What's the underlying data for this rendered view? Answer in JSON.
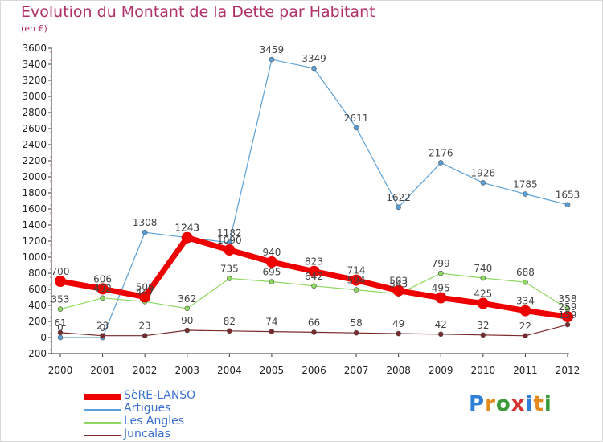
{
  "title": "Evolution du Montant de la Dette par Habitant",
  "subtitle": "(en €)",
  "logo": {
    "text": "Proxiti",
    "colors": [
      "#2f7fd8",
      "#e48a1c",
      "#3a9a3a",
      "#d83030",
      "#2f7fd8",
      "#e48a1c",
      "#3a9a3a"
    ]
  },
  "chart_data": {
    "type": "line",
    "x": [
      "2000",
      "2001",
      "2002",
      "2003",
      "2004",
      "2005",
      "2006",
      "2007",
      "2008",
      "2009",
      "2010",
      "2011",
      "2012"
    ],
    "ylim": [
      -200,
      3600
    ],
    "yticks": [
      -200,
      0,
      200,
      400,
      600,
      800,
      1000,
      1200,
      1400,
      1600,
      1800,
      2000,
      2200,
      2400,
      2600,
      2800,
      3000,
      3200,
      3400,
      3600
    ],
    "grid": false,
    "legend": "bottom-left",
    "series": [
      {
        "name": "SèRE-LANSO",
        "color": "#ee0000",
        "width": 7,
        "marker": 7,
        "values": [
          700,
          606,
          506,
          1243,
          1090,
          940,
          823,
          714,
          583,
          495,
          425,
          334,
          259
        ],
        "labels": [
          "700",
          "606",
          "506",
          "1243",
          "1090",
          "940",
          "823",
          "714",
          "583",
          "495",
          "425",
          "334",
          "259"
        ]
      },
      {
        "name": "Artigues",
        "color": "#5aa0d8",
        "width": 1.2,
        "marker": 3,
        "values": [
          0,
          0,
          1308,
          1243,
          1182,
          3459,
          3349,
          2611,
          1622,
          2176,
          1926,
          1785,
          1653
        ],
        "labels": [
          "0",
          "0",
          "1308",
          "1243",
          "1182",
          "3459",
          "3349",
          "2611",
          "1622",
          "2176",
          "1926",
          "1785",
          "1653"
        ]
      },
      {
        "name": "Les Angles",
        "color": "#8ed860",
        "width": 1.2,
        "marker": 3,
        "values": [
          353,
          492,
          447,
          362,
          735,
          695,
          642,
          594,
          543,
          799,
          740,
          688,
          358
        ],
        "labels": [
          "353",
          "492",
          "447",
          "362",
          "735",
          "695",
          "642",
          "594",
          "543",
          "799",
          "740",
          "688",
          "358"
        ]
      },
      {
        "name": "Juncalas",
        "color": "#7a2a2a",
        "width": 1.2,
        "marker": 3,
        "values": [
          61,
          23,
          23,
          90,
          82,
          74,
          66,
          58,
          49,
          42,
          32,
          22,
          159
        ],
        "labels": [
          "61",
          "23",
          "23",
          "90",
          "82",
          "74",
          "66",
          "58",
          "49",
          "42",
          "32",
          "22",
          "159"
        ]
      }
    ]
  }
}
